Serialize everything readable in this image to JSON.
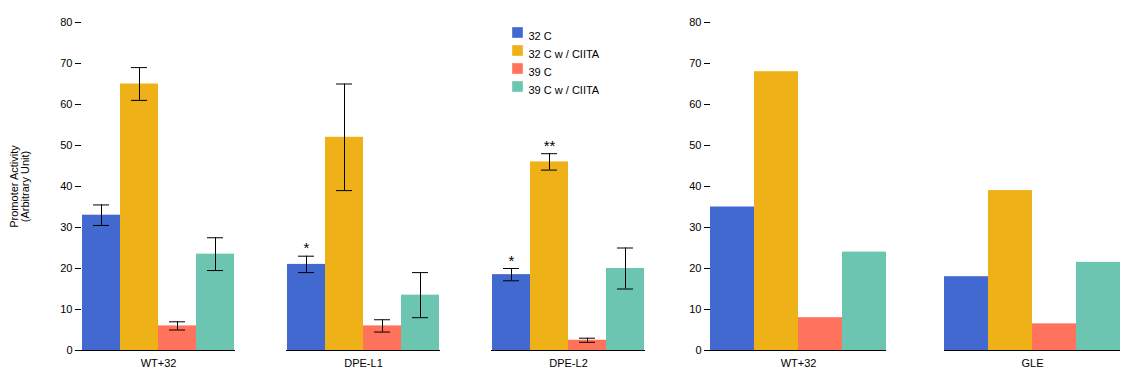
{
  "chart_data": [
    {
      "type": "bar",
      "categories": [
        "WT+32",
        "DPE-L1",
        "DPE-L2"
      ],
      "series": [
        {
          "name": "32 C",
          "values": [
            33,
            21,
            18.5
          ],
          "errors": [
            2.5,
            2.0,
            1.5
          ]
        },
        {
          "name": "32 C w / CIITA",
          "values": [
            65,
            52,
            46
          ],
          "errors": [
            4.0,
            13.0,
            2.0
          ]
        },
        {
          "name": "39 C",
          "values": [
            6,
            6,
            2.5
          ],
          "errors": [
            1.0,
            1.5,
            0.5
          ]
        },
        {
          "name": "39 C w / CIITA",
          "values": [
            23.5,
            13.5,
            20
          ],
          "errors": [
            4.0,
            5.5,
            5.0
          ]
        }
      ],
      "ylabel": "Promoter Activity\n(Arbitrary Unit)",
      "ylim": [
        0,
        80
      ],
      "yticks": [
        0,
        10,
        20,
        30,
        40,
        50,
        60,
        70,
        80
      ],
      "legend": "upper right",
      "annotations": [
        {
          "text": "*",
          "category": "DPE-L1",
          "series": "32 C"
        },
        {
          "text": "*",
          "category": "DPE-L2",
          "series": "32 C"
        },
        {
          "text": "**",
          "category": "DPE-L2",
          "series": "32 C w / CIITA"
        }
      ]
    },
    {
      "type": "bar",
      "categories": [
        "WT+32",
        "GLE"
      ],
      "series": [
        {
          "name": "32 C",
          "values": [
            35,
            18
          ]
        },
        {
          "name": "32 C w / CIITA",
          "values": [
            68,
            39
          ]
        },
        {
          "name": "39 C",
          "values": [
            8,
            6.5
          ]
        },
        {
          "name": "39 C w / CIITA",
          "values": [
            24,
            21.5
          ]
        }
      ],
      "ylim": [
        0,
        80
      ],
      "yticks": [
        0,
        10,
        20,
        30,
        40,
        50,
        60,
        70,
        80
      ]
    }
  ]
}
